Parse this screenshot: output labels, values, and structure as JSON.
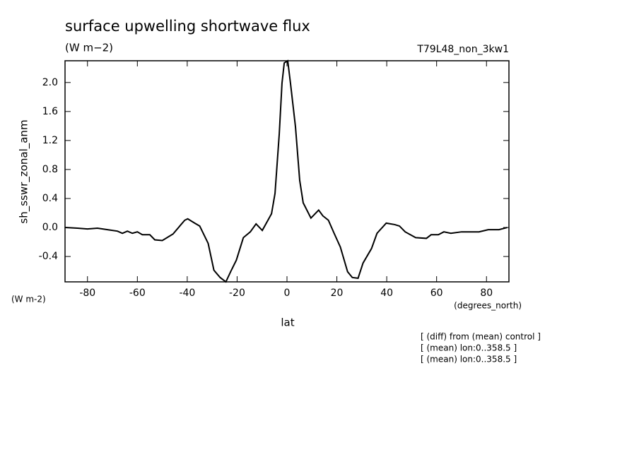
{
  "chart_data": {
    "type": "line",
    "title": "surface upwelling shortwave flux",
    "subtitle": "(W m−2)",
    "run_label": "T79L48_non_3kw1",
    "y_label": "sh_sswr_zonal_anm",
    "y_units": "(W m-2)",
    "x_label": "lat",
    "x_units": "(degrees_north)",
    "notes": [
      "[ (diff) from (mean) control ]",
      "[ (mean) lon:0..358.5 ]",
      "[ (mean) lon:0..358.5 ]"
    ],
    "xlim": [
      -89,
      89
    ],
    "ylim": [
      -0.75,
      2.3
    ],
    "xticks": [
      -80,
      -60,
      -40,
      -20,
      0,
      20,
      40,
      60,
      80
    ],
    "yticks": [
      -0.4,
      {
        "value": 0,
        "label": "0.0"
      },
      0.4,
      0.8,
      1.2,
      1.6,
      {
        "value": 2,
        "label": "2.0"
      }
    ],
    "series": [
      {
        "color": "#000000",
        "x": [
          -89,
          -84,
          -80,
          -76,
          -72,
          -68,
          -66,
          -64,
          -62,
          -60,
          -58,
          -55,
          -53,
          -50,
          -45.7,
          -43,
          -41,
          -39.8,
          -37,
          -35,
          -31.6,
          -29.3,
          -26.8,
          -24.5,
          -22.6,
          -20.3,
          -17.5,
          -14.7,
          -12.4,
          -9.9,
          -6.2,
          -4.8,
          -3.1,
          -2.0,
          -1.1,
          0.3,
          1.4,
          3.4,
          5.1,
          6.5,
          9.6,
          12.7,
          14.4,
          16.6,
          18.9,
          21.4,
          24.3,
          26.2,
          28.5,
          30.5,
          33.9,
          36.1,
          39.8,
          43.2,
          45.1,
          47.4,
          51.6,
          55.9,
          57.8,
          60.7,
          62.9,
          65.7,
          70,
          72.8,
          77,
          80.7,
          85,
          88.3
        ],
        "values": [
          0.0,
          -0.01,
          -0.02,
          -0.01,
          -0.03,
          -0.05,
          -0.08,
          -0.05,
          -0.08,
          -0.06,
          -0.1,
          -0.1,
          -0.17,
          -0.18,
          -0.09,
          0.02,
          0.1,
          0.12,
          0.06,
          0.02,
          -0.22,
          -0.59,
          -0.69,
          -0.75,
          -0.61,
          -0.45,
          -0.14,
          -0.06,
          0.05,
          -0.04,
          0.19,
          0.47,
          1.29,
          1.99,
          2.27,
          2.3,
          1.99,
          1.39,
          0.65,
          0.34,
          0.13,
          0.24,
          0.16,
          0.1,
          -0.08,
          -0.27,
          -0.61,
          -0.69,
          -0.7,
          -0.49,
          -0.29,
          -0.08,
          0.06,
          0.04,
          0.02,
          -0.06,
          -0.14,
          -0.15,
          -0.1,
          -0.1,
          -0.06,
          -0.08,
          -0.06,
          -0.06,
          -0.06,
          -0.03,
          -0.03,
          0.0
        ]
      }
    ]
  }
}
